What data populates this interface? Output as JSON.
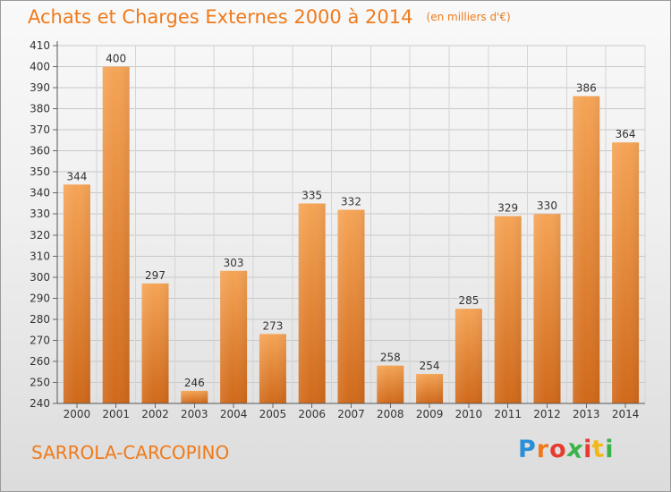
{
  "header": {
    "title": "Achats et Charges Externes 2000 à 2014",
    "unit": "(en milliers d'€)"
  },
  "footer": {
    "city": "SARROLA-CARCOPINO",
    "logo": "Proxiti"
  },
  "colors": {
    "accent": "#f07a1a",
    "bar_top": "#f5a456",
    "bar_bottom": "#d0691a"
  },
  "chart_data": {
    "type": "bar",
    "title": "Achats et Charges Externes 2000 à 2014",
    "subtitle": "(en milliers d'€)",
    "xlabel": "",
    "ylabel": "",
    "categories": [
      "2000",
      "2001",
      "2002",
      "2003",
      "2004",
      "2005",
      "2006",
      "2007",
      "2008",
      "2009",
      "2010",
      "2011",
      "2012",
      "2013",
      "2014"
    ],
    "values": [
      344,
      400,
      297,
      246,
      303,
      273,
      335,
      332,
      258,
      254,
      285,
      329,
      330,
      386,
      364
    ],
    "ylim": [
      240,
      410
    ],
    "yticks": [
      240,
      250,
      260,
      270,
      280,
      290,
      300,
      310,
      320,
      330,
      340,
      350,
      360,
      370,
      380,
      390,
      400,
      410
    ],
    "grid": true,
    "data_labels": true
  }
}
